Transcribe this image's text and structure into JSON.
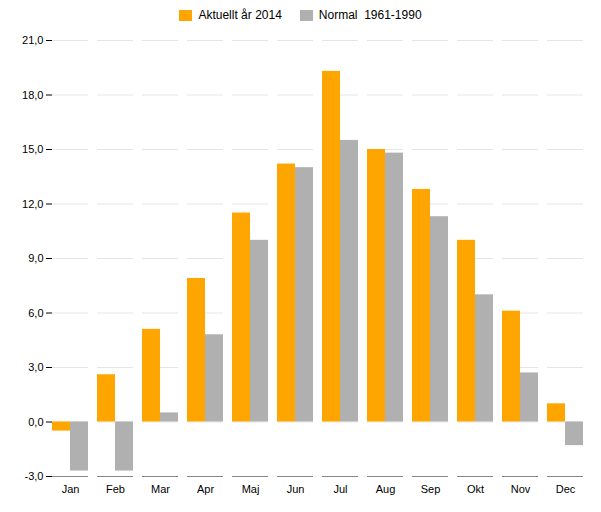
{
  "chart_data": {
    "type": "bar",
    "categories": [
      "Jan",
      "Feb",
      "Mar",
      "Apr",
      "Maj",
      "Jun",
      "Jul",
      "Aug",
      "Sep",
      "Okt",
      "Nov",
      "Dec"
    ],
    "series": [
      {
        "name": "Aktuellt år 2014",
        "color": "#FFA500",
        "values": [
          -0.5,
          2.6,
          5.1,
          7.9,
          11.5,
          14.2,
          19.3,
          15.0,
          12.8,
          10.0,
          6.1,
          1.0
        ]
      },
      {
        "name": "Normal  1961-1990",
        "color": "#B0B0B0",
        "values": [
          -2.7,
          -2.7,
          0.5,
          4.8,
          10.0,
          14.0,
          15.5,
          14.8,
          11.3,
          7.0,
          2.7,
          -1.3
        ]
      }
    ],
    "ylim": [
      -3.0,
      21.0
    ],
    "yticks": [
      {
        "value": -3.0,
        "label": "-3,0"
      },
      {
        "value": 0.0,
        "label": "0,0"
      },
      {
        "value": 3.0,
        "label": "3,0"
      },
      {
        "value": 6.0,
        "label": "6,0"
      },
      {
        "value": 9.0,
        "label": "9,0"
      },
      {
        "value": 12.0,
        "label": "12,0"
      },
      {
        "value": 15.0,
        "label": "15,0"
      },
      {
        "value": 18.0,
        "label": "18,0"
      },
      {
        "value": 21.0,
        "label": "21,0"
      }
    ],
    "grid": true,
    "legend": "top"
  }
}
